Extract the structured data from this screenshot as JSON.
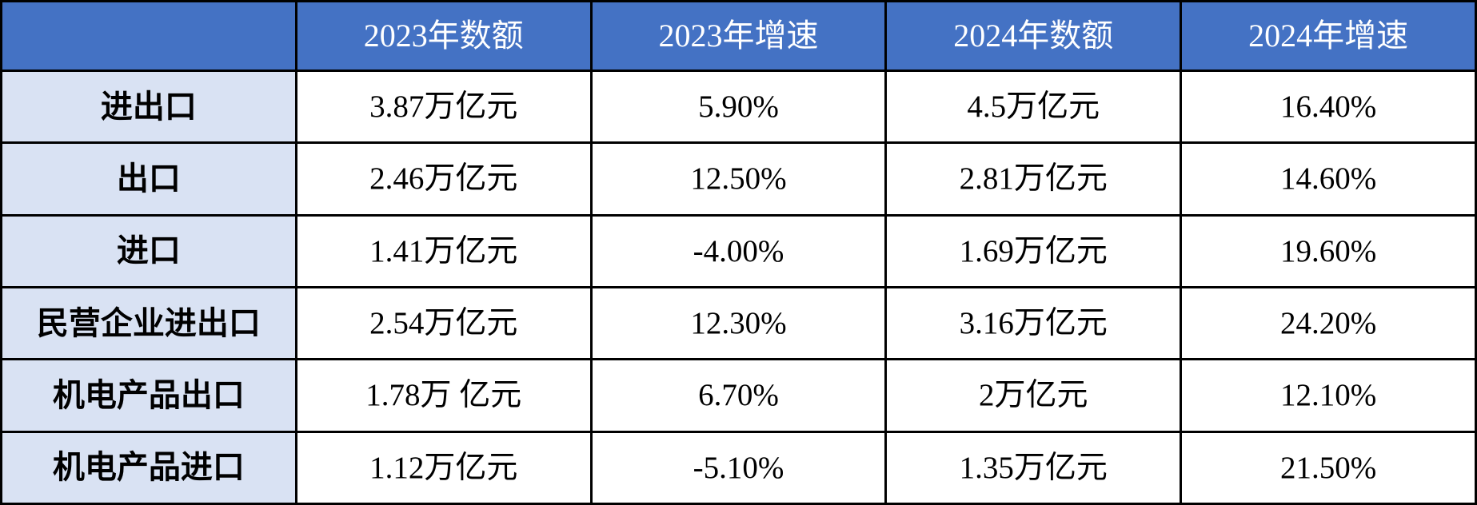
{
  "colors": {
    "header_bg": "#4472C4",
    "header_text": "#FFFFFF",
    "row_label_bg": "#D9E2F3",
    "body_text": "#000000",
    "border": "#000000"
  },
  "chart_data": {
    "type": "table",
    "title": "",
    "columns": [
      "",
      "2023年数额",
      "2023年增速",
      "2024年数额",
      "2024年增速"
    ],
    "rows": [
      {
        "label": "进出口",
        "values": [
          "3.87万亿元",
          "5.90%",
          "4.5万亿元",
          "16.40%"
        ]
      },
      {
        "label": "出口",
        "values": [
          "2.46万亿元",
          "12.50%",
          "2.81万亿元",
          "14.60%"
        ]
      },
      {
        "label": "进口",
        "values": [
          "1.41万亿元",
          "-4.00%",
          "1.69万亿元",
          "19.60%"
        ]
      },
      {
        "label": "民营企业进出口",
        "values": [
          "2.54万亿元",
          "12.30%",
          "3.16万亿元",
          "24.20%"
        ]
      },
      {
        "label": "机电产品出口",
        "values": [
          "1.78万 亿元",
          "6.70%",
          "2万亿元",
          "12.10%"
        ]
      },
      {
        "label": "机电产品进口",
        "values": [
          "1.12万亿元",
          "-5.10%",
          "1.35万亿元",
          "21.50%"
        ]
      }
    ]
  }
}
